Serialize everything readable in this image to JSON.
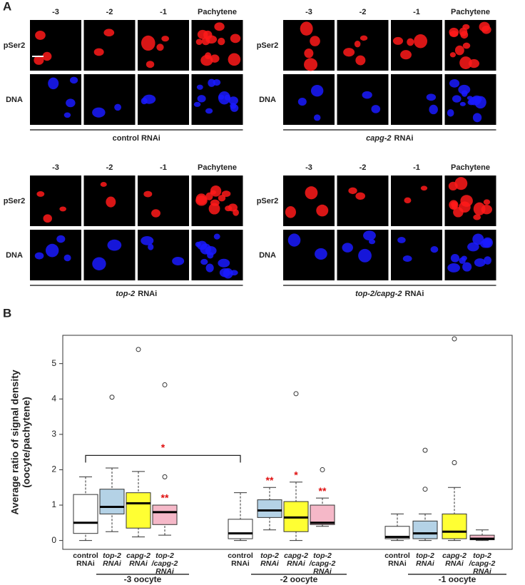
{
  "panel_a": {
    "label": "A",
    "groups": [
      {
        "columns": [
          "-3",
          "-2",
          "-1",
          "Pachytene"
        ],
        "rows": [
          "pSer2",
          "DNA"
        ],
        "caption": [
          {
            "text": "control RNAi",
            "italic": false
          }
        ]
      },
      {
        "columns": [
          "-3",
          "-2",
          "-1",
          "Pachytene"
        ],
        "rows": [
          "pSer2",
          "DNA"
        ],
        "caption": [
          {
            "text": "capg-2",
            "italic": true
          },
          {
            "text": "RNAi",
            "italic": false
          }
        ]
      },
      {
        "columns": [
          "-3",
          "-2",
          "-1",
          "Pachytene"
        ],
        "rows": [
          "pSer2",
          "DNA"
        ],
        "caption": [
          {
            "text": "top-2",
            "italic": true
          },
          {
            "text": "RNAi",
            "italic": false
          }
        ]
      },
      {
        "columns": [
          "-3",
          "-2",
          "-1",
          "Pachytene"
        ],
        "rows": [
          "pSer2",
          "DNA"
        ],
        "caption": [
          {
            "text": "top-2/capg-2",
            "italic": true
          },
          {
            "text": "RNAi",
            "italic": false
          }
        ]
      }
    ]
  },
  "chart_data": {
    "type": "box",
    "panel_label": "B",
    "y_label": [
      "Average ratio of signal density",
      "(oocyte/pachytene)"
    ],
    "ylim": [
      -0.25,
      5.8
    ],
    "yticks": [
      0,
      1,
      2,
      3,
      4,
      5
    ],
    "boxes": [
      {
        "label": [
          "control",
          "RNAi"
        ],
        "italic": false,
        "color": "#ffffff",
        "min": 0,
        "q1": 0.2,
        "median": 0.5,
        "q3": 1.3,
        "max": 1.8,
        "outliers": []
      },
      {
        "label": [
          "top-2",
          "RNAi"
        ],
        "italic": true,
        "color": "#b4d2e6",
        "min": 0.25,
        "q1": 0.75,
        "median": 0.95,
        "q3": 1.45,
        "max": 2.05,
        "outliers": [
          4.05
        ]
      },
      {
        "label": [
          "capg-2",
          "RNAi"
        ],
        "italic": true,
        "color": "#ffff33",
        "min": 0.1,
        "q1": 0.35,
        "median": 1.05,
        "q3": 1.35,
        "max": 1.95,
        "outliers": [
          5.4
        ]
      },
      {
        "label": [
          "top-2",
          "/capg-2",
          "RNAi"
        ],
        "italic": true,
        "color": "#f5b8c8",
        "min": 0.15,
        "q1": 0.45,
        "median": 0.8,
        "q3": 1.0,
        "max": 1.0,
        "outliers": [
          1.8,
          4.4
        ],
        "significance": "**"
      },
      {
        "label": [
          "control",
          "RNAi"
        ],
        "italic": false,
        "color": "#ffffff",
        "min": 0,
        "q1": 0.05,
        "median": 0.2,
        "q3": 0.6,
        "max": 1.35,
        "outliers": []
      },
      {
        "label": [
          "top-2",
          "RNAi"
        ],
        "italic": true,
        "color": "#b4d2e6",
        "min": 0.3,
        "q1": 0.65,
        "median": 0.85,
        "q3": 1.15,
        "max": 1.5,
        "outliers": [],
        "significance": "**"
      },
      {
        "label": [
          "capg-2",
          "RNAi"
        ],
        "italic": true,
        "color": "#ffff33",
        "min": 0,
        "q1": 0.25,
        "median": 0.65,
        "q3": 1.1,
        "max": 1.65,
        "outliers": [
          4.15
        ],
        "significance": "*"
      },
      {
        "label": [
          "top-2",
          "/capg-2",
          "RNAi"
        ],
        "italic": true,
        "color": "#f5b8c8",
        "min": 0.4,
        "q1": 0.45,
        "median": 0.5,
        "q3": 1.0,
        "max": 1.2,
        "outliers": [
          2.0
        ],
        "significance": "**"
      },
      {
        "label": [
          "control",
          "RNAi"
        ],
        "italic": false,
        "color": "#ffffff",
        "min": 0,
        "q1": 0.05,
        "median": 0.1,
        "q3": 0.4,
        "max": 0.75,
        "outliers": []
      },
      {
        "label": [
          "top-2",
          "RNAi"
        ],
        "italic": true,
        "color": "#b4d2e6",
        "min": 0,
        "q1": 0.05,
        "median": 0.2,
        "q3": 0.55,
        "max": 0.75,
        "outliers": [
          1.45,
          2.55
        ]
      },
      {
        "label": [
          "capg-2",
          "RNAi"
        ],
        "italic": true,
        "color": "#ffff33",
        "min": 0,
        "q1": 0.05,
        "median": 0.25,
        "q3": 0.75,
        "max": 1.5,
        "outliers": [
          2.2,
          5.7
        ]
      },
      {
        "label": [
          "top-2",
          "/capg-2",
          "RNAi"
        ],
        "italic": true,
        "color": "#f5b8c8",
        "min": 0,
        "q1": 0.02,
        "median": 0.05,
        "q3": 0.15,
        "max": 0.3,
        "outliers": []
      }
    ],
    "groups": [
      "-3 oocyte",
      "-2 oocyte",
      "-1 oocyte"
    ],
    "bracket": {
      "from": 0,
      "to": 4,
      "text": "*"
    }
  }
}
